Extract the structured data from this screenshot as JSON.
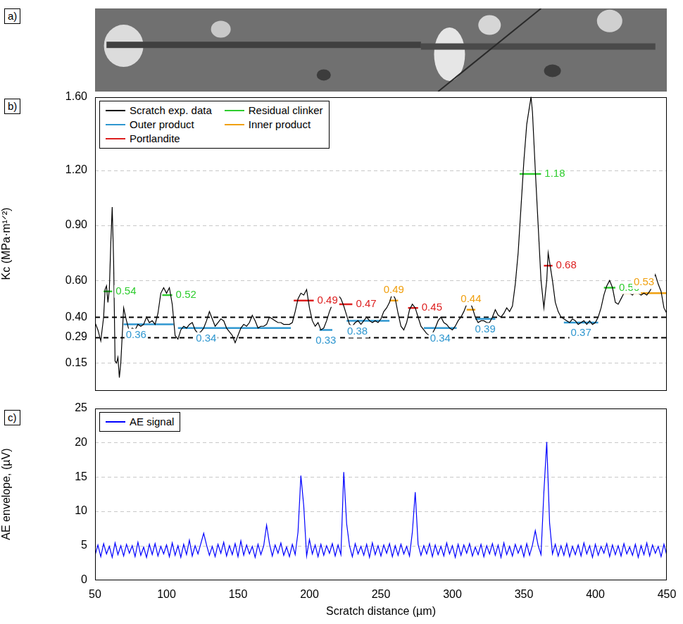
{
  "image_panel": {
    "label": "a)"
  },
  "chart_data": [
    {
      "panel": "b)",
      "type": "line",
      "ylabel": "Kc (MPa·m¹ᐟ²)",
      "xlim": [
        50,
        450
      ],
      "xticks": [
        50,
        100,
        150,
        200,
        250,
        300,
        350,
        400,
        450
      ],
      "ylim": [
        0,
        1.6
      ],
      "yticks": [
        0.15,
        0.29,
        {
          "value": 0.4,
          "label": "0.40"
        },
        {
          "value": 0.6,
          "label": "0.60"
        },
        {
          "value": 0.9,
          "label": "0.90"
        },
        {
          "value": 1.2,
          "label": "1.20"
        },
        {
          "value": 1.6,
          "label": "1.60"
        }
      ],
      "thresholds": [
        0.29,
        0.4
      ],
      "grid": true,
      "legend": "upper left",
      "tick_labels": "y",
      "data_labels": true,
      "series": [
        {
          "name": "Scratch exp. data",
          "color": "#000000",
          "x": [
            50,
            52,
            54,
            56,
            57,
            58,
            59,
            60,
            61,
            62,
            63,
            64,
            65,
            66,
            67,
            68,
            69,
            70,
            72,
            74,
            76,
            78,
            80,
            82,
            84,
            86,
            88,
            90,
            92,
            94,
            96,
            98,
            100,
            102,
            104,
            106,
            108,
            110,
            112,
            114,
            116,
            118,
            120,
            122,
            124,
            126,
            128,
            130,
            132,
            134,
            136,
            138,
            140,
            142,
            144,
            146,
            148,
            150,
            152,
            154,
            156,
            158,
            160,
            162,
            164,
            166,
            168,
            170,
            172,
            174,
            176,
            178,
            180,
            182,
            184,
            186,
            188,
            190,
            192,
            194,
            196,
            198,
            200,
            202,
            204,
            206,
            208,
            210,
            212,
            214,
            216,
            218,
            220,
            222,
            224,
            226,
            228,
            230,
            232,
            234,
            236,
            238,
            240,
            242,
            244,
            246,
            248,
            250,
            252,
            254,
            256,
            258,
            260,
            262,
            264,
            266,
            268,
            270,
            272,
            274,
            276,
            278,
            280,
            282,
            284,
            286,
            288,
            290,
            292,
            294,
            296,
            298,
            300,
            302,
            304,
            306,
            308,
            310,
            312,
            314,
            316,
            318,
            320,
            322,
            324,
            326,
            328,
            330,
            332,
            334,
            336,
            338,
            340,
            342,
            344,
            346,
            348,
            350,
            352,
            354,
            355,
            356,
            358,
            360,
            362,
            364,
            366,
            367,
            368,
            370,
            372,
            374,
            376,
            378,
            380,
            382,
            384,
            386,
            388,
            390,
            392,
            394,
            396,
            398,
            400,
            402,
            404,
            406,
            408,
            410,
            412,
            414,
            416,
            418,
            420,
            422,
            424,
            426,
            428,
            430,
            432,
            434,
            436,
            438,
            440,
            442,
            444,
            446,
            448,
            450
          ],
          "values": [
            0.37,
            0.33,
            0.27,
            0.4,
            0.55,
            0.57,
            0.48,
            0.55,
            0.8,
            1.0,
            0.7,
            0.16,
            0.15,
            0.18,
            0.07,
            0.15,
            0.3,
            0.45,
            0.38,
            0.32,
            0.34,
            0.33,
            0.36,
            0.35,
            0.36,
            0.4,
            0.37,
            0.38,
            0.36,
            0.42,
            0.53,
            0.56,
            0.53,
            0.56,
            0.47,
            0.3,
            0.28,
            0.33,
            0.35,
            0.34,
            0.36,
            0.37,
            0.33,
            0.31,
            0.32,
            0.34,
            0.38,
            0.43,
            0.39,
            0.35,
            0.37,
            0.39,
            0.38,
            0.34,
            0.32,
            0.3,
            0.26,
            0.3,
            0.34,
            0.36,
            0.35,
            0.37,
            0.41,
            0.38,
            0.34,
            0.35,
            0.35,
            0.36,
            0.4,
            0.39,
            0.38,
            0.37,
            0.37,
            0.36,
            0.36,
            0.36,
            0.37,
            0.43,
            0.5,
            0.53,
            0.52,
            0.55,
            0.45,
            0.38,
            0.35,
            0.37,
            0.33,
            0.34,
            0.38,
            0.43,
            0.47,
            0.51,
            0.52,
            0.5,
            0.46,
            0.41,
            0.36,
            0.35,
            0.37,
            0.38,
            0.36,
            0.38,
            0.4,
            0.38,
            0.37,
            0.38,
            0.37,
            0.39,
            0.43,
            0.45,
            0.48,
            0.53,
            0.5,
            0.42,
            0.35,
            0.33,
            0.37,
            0.44,
            0.47,
            0.45,
            0.4,
            0.35,
            0.33,
            0.31,
            0.3,
            0.31,
            0.34,
            0.38,
            0.4,
            0.37,
            0.36,
            0.34,
            0.33,
            0.35,
            0.38,
            0.4,
            0.43,
            0.47,
            0.49,
            0.45,
            0.4,
            0.37,
            0.38,
            0.38,
            0.37,
            0.37,
            0.4,
            0.44,
            0.41,
            0.4,
            0.42,
            0.45,
            0.43,
            0.46,
            0.58,
            0.75,
            1.0,
            1.25,
            1.45,
            1.55,
            1.6,
            1.52,
            1.2,
            0.9,
            0.6,
            0.45,
            0.6,
            0.75,
            0.7,
            0.6,
            0.48,
            0.43,
            0.4,
            0.39,
            0.38,
            0.37,
            0.39,
            0.38,
            0.36,
            0.37,
            0.38,
            0.36,
            0.38,
            0.36,
            0.37,
            0.4,
            0.45,
            0.52,
            0.57,
            0.6,
            0.56,
            0.48,
            0.47,
            0.5,
            0.53,
            0.54,
            0.53,
            0.52,
            0.54,
            0.53,
            0.52,
            0.53,
            0.52,
            0.54,
            0.57,
            0.63,
            0.58,
            0.54,
            0.45,
            0.42
          ]
        },
        {
          "name": "Residual clinker",
          "color": "#2ecc2e",
          "segments": [
            {
              "x": [
                56,
                62
              ],
              "value": 0.54
            },
            {
              "x": [
                97,
                104
              ],
              "value": 0.52
            },
            {
              "x": [
                347,
                362
              ],
              "value": 1.18
            },
            {
              "x": [
                406,
                414
              ],
              "value": 0.56
            }
          ]
        },
        {
          "name": "Outer product",
          "color": "#2f97d0",
          "segments": [
            {
              "x": [
                70,
                105
              ],
              "value": 0.36
            },
            {
              "x": [
                108,
                187
              ],
              "value": 0.34
            },
            {
              "x": [
                207,
                216
              ],
              "value": 0.33
            },
            {
              "x": [
                226,
                256
              ],
              "value": 0.38
            },
            {
              "x": [
                280,
                303
              ],
              "value": 0.34
            },
            {
              "x": [
                316,
                330
              ],
              "value": 0.39
            },
            {
              "x": [
                378,
                402
              ],
              "value": 0.37
            }
          ]
        },
        {
          "name": "Inner product",
          "color": "#f0a010",
          "segments": [
            {
              "x": [
                256,
                262
              ],
              "value": 0.49
            },
            {
              "x": [
                310,
                316
              ],
              "value": 0.44
            },
            {
              "x": [
                418,
                450
              ],
              "value": 0.53
            }
          ]
        },
        {
          "name": "Portlandite",
          "color": "#dd1f1f",
          "segments": [
            {
              "x": [
                189,
                203
              ],
              "value": 0.49
            },
            {
              "x": [
                216,
                230
              ],
              "value": 0.47
            },
            {
              "x": [
                269,
                276
              ],
              "value": 0.45
            },
            {
              "x": [
                364,
                370
              ],
              "value": 0.68
            }
          ]
        }
      ]
    },
    {
      "panel": "c)",
      "type": "line",
      "xlabel": "Scratch distance (µm)",
      "ylabel": "AE envelope, (µV)",
      "xlim": [
        50,
        450
      ],
      "xticks": [
        50,
        100,
        150,
        200,
        250,
        300,
        350,
        400,
        450
      ],
      "ylim": [
        0,
        25
      ],
      "yticks": [
        0,
        5,
        10,
        15,
        20,
        25
      ],
      "grid": true,
      "legend": "upper left",
      "series": [
        {
          "name": "AE signal",
          "color": "#0000ff",
          "x": [
            50,
            52,
            54,
            56,
            58,
            60,
            62,
            64,
            66,
            68,
            70,
            72,
            74,
            76,
            78,
            80,
            82,
            84,
            86,
            88,
            90,
            92,
            94,
            96,
            98,
            100,
            102,
            104,
            106,
            108,
            110,
            112,
            114,
            116,
            118,
            120,
            122,
            124,
            126,
            128,
            130,
            132,
            134,
            136,
            138,
            140,
            142,
            144,
            146,
            148,
            150,
            152,
            154,
            156,
            158,
            160,
            162,
            164,
            166,
            168,
            170,
            172,
            174,
            176,
            178,
            180,
            182,
            184,
            186,
            188,
            190,
            192,
            194,
            196,
            198,
            200,
            202,
            204,
            206,
            208,
            210,
            212,
            214,
            216,
            218,
            220,
            222,
            224,
            226,
            228,
            230,
            232,
            234,
            236,
            238,
            240,
            242,
            244,
            246,
            248,
            250,
            252,
            254,
            256,
            258,
            260,
            262,
            264,
            266,
            268,
            270,
            272,
            274,
            276,
            278,
            280,
            282,
            284,
            286,
            288,
            290,
            292,
            294,
            296,
            298,
            300,
            302,
            304,
            306,
            308,
            310,
            312,
            314,
            316,
            318,
            320,
            322,
            324,
            326,
            328,
            330,
            332,
            334,
            336,
            338,
            340,
            342,
            344,
            346,
            348,
            350,
            352,
            354,
            356,
            358,
            360,
            362,
            364,
            366,
            368,
            370,
            372,
            374,
            376,
            378,
            380,
            382,
            384,
            386,
            388,
            390,
            392,
            394,
            396,
            398,
            400,
            402,
            404,
            406,
            408,
            410,
            412,
            414,
            416,
            418,
            420,
            422,
            424,
            426,
            428,
            430,
            432,
            434,
            436,
            438,
            440,
            442,
            444,
            446,
            448,
            450
          ],
          "values": [
            3.6,
            5.1,
            3.4,
            5.3,
            3.8,
            4.9,
            3.3,
            5.4,
            3.7,
            5.0,
            3.5,
            5.2,
            3.9,
            5.0,
            3.4,
            5.5,
            3.6,
            4.8,
            3.3,
            5.2,
            3.7,
            5.3,
            3.5,
            4.9,
            3.8,
            5.1,
            3.4,
            5.4,
            3.6,
            5.0,
            3.3,
            5.2,
            3.7,
            5.8,
            3.5,
            5.0,
            3.8,
            5.3,
            6.8,
            5.1,
            3.6,
            4.9,
            3.4,
            5.2,
            3.9,
            5.5,
            3.5,
            5.0,
            3.7,
            5.3,
            3.4,
            5.7,
            3.6,
            5.1,
            3.8,
            4.9,
            3.3,
            5.2,
            3.7,
            5.0,
            8.0,
            5.3,
            3.5,
            5.1,
            3.9,
            5.4,
            3.6,
            4.8,
            3.4,
            5.2,
            3.7,
            7.0,
            15.2,
            10.8,
            3.5,
            5.9,
            3.8,
            5.1,
            3.4,
            5.2,
            3.6,
            5.0,
            3.9,
            5.3,
            3.5,
            5.1,
            3.7,
            15.7,
            8.2,
            5.0,
            3.4,
            5.3,
            3.8,
            4.9,
            3.6,
            5.2,
            3.3,
            5.4,
            3.7,
            5.0,
            3.5,
            5.1,
            3.9,
            5.3,
            3.4,
            5.0,
            3.6,
            5.2,
            3.8,
            4.9,
            3.5,
            7.0,
            12.8,
            5.2,
            3.6,
            5.0,
            3.8,
            5.3,
            3.4,
            5.1,
            3.7,
            4.9,
            3.5,
            5.4,
            3.8,
            5.0,
            3.3,
            5.2,
            3.6,
            5.1,
            3.9,
            5.3,
            3.5,
            4.8,
            3.7,
            5.2,
            3.4,
            5.0,
            3.8,
            5.3,
            3.6,
            5.1,
            3.3,
            5.4,
            3.7,
            4.9,
            3.5,
            5.2,
            3.9,
            5.0,
            3.4,
            5.3,
            3.6,
            5.1,
            7.2,
            5.0,
            3.7,
            12.8,
            20.1,
            8.3,
            3.8,
            5.2,
            3.5,
            5.0,
            3.6,
            5.3,
            3.4,
            4.9,
            3.7,
            5.1,
            3.5,
            5.4,
            3.8,
            5.0,
            3.3,
            5.2,
            3.6,
            4.9,
            3.9,
            5.3,
            3.4,
            5.1,
            3.7,
            5.0,
            3.5,
            5.3,
            3.8,
            4.8,
            3.6,
            5.2,
            3.3,
            5.0,
            3.7,
            5.4,
            3.5,
            5.1,
            3.9,
            4.9,
            3.4,
            5.2,
            3.6
          ]
        }
      ]
    }
  ]
}
